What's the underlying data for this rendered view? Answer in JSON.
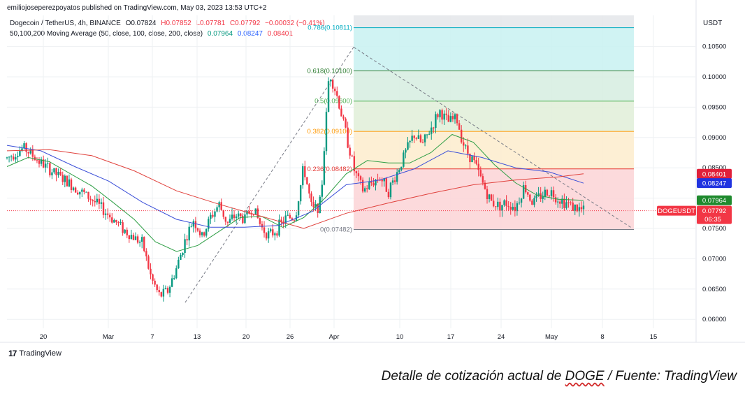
{
  "publisher_line": "emiliojoseperezpoyatos published on TradingView.com, May 03, 2023 13:53 UTC+2",
  "legend": {
    "symbol": "Dogecoin / TetherUS, 4h, BINANCE",
    "o": "O0.07824",
    "h": "H0.07852",
    "l": "L0.07781",
    "c": "C0.07792",
    "change": "−0.00032 (−0.41%)",
    "ma_label": "50,100,200 Moving Average (50, close, 100, close, 200, close)",
    "ma50": "0.07964",
    "ma100": "0.08247",
    "ma200": "0.08401"
  },
  "currency": "USDT",
  "caption": {
    "before": "Detalle de cotización actual de ",
    "ticker": "DOGE",
    "after": " / Fuente: TradingView"
  },
  "brand": "TradingView",
  "price_tags": {
    "ma200": "0.08401",
    "ma100": "0.08247",
    "ma50": "0.07964",
    "symbol": "DOGEUSDT",
    "last": "0.07792",
    "countdown": "06:35"
  },
  "colors": {
    "up": "#089981",
    "down": "#f23645",
    "ma50": "#2e9e45",
    "ma100": "#3b4fd8",
    "ma200": "#e0413c",
    "fib_786": "#c8f1f1",
    "fib_618": "#d6ede0",
    "fib_5": "#e1efd8",
    "fib_382": "#fdeccc",
    "fib_236": "#fbd3d6"
  },
  "chart_data": {
    "type": "candlestick",
    "title": "Dogecoin / TetherUS, 4h, BINANCE",
    "ylabel": "USDT",
    "ylim": [
      0.0575,
      0.1125
    ],
    "y_ticks": [
      "0.06000",
      "0.06500",
      "0.07000",
      "0.07500",
      "0.08000",
      "0.08500",
      "0.09000",
      "0.09500",
      "0.10000",
      "0.10500"
    ],
    "x_ticks": [
      "20",
      "Mar",
      "7",
      "13",
      "20",
      "26",
      "Apr",
      "10",
      "17",
      "24",
      "May",
      "8",
      "15"
    ],
    "fibonacci": {
      "levels": [
        {
          "label": "0.786(0.10811)",
          "ratio": 0.786,
          "price": 0.10811
        },
        {
          "label": "0.618(0.10100)",
          "ratio": 0.618,
          "price": 0.101
        },
        {
          "label": "0.5(0.09600)",
          "ratio": 0.5,
          "price": 0.096
        },
        {
          "label": "0.382(0.09100)",
          "ratio": 0.382,
          "price": 0.091
        },
        {
          "label": "0.236(0.08482)",
          "ratio": 0.236,
          "price": 0.08482
        },
        {
          "label": "0(0.07482)",
          "ratio": 0,
          "price": 0.07482
        }
      ]
    },
    "key_prices": {
      "last": 0.07792,
      "ma50": 0.07964,
      "ma100": 0.08247,
      "ma200": 0.08401,
      "swing_high": 0.1049,
      "swing_low": 0.0628
    },
    "price_path": [
      [
        0,
        0.0866
      ],
      [
        0.04,
        0.0883
      ],
      [
        0.08,
        0.0858
      ],
      [
        0.12,
        0.0837
      ],
      [
        0.16,
        0.0818
      ],
      [
        0.2,
        0.0798
      ],
      [
        0.24,
        0.0772
      ],
      [
        0.28,
        0.0745
      ],
      [
        0.32,
        0.0725
      ],
      [
        0.34,
        0.0668
      ],
      [
        0.36,
        0.0638
      ],
      [
        0.38,
        0.0648
      ],
      [
        0.4,
        0.0685
      ],
      [
        0.42,
        0.073
      ],
      [
        0.44,
        0.0765
      ],
      [
        0.46,
        0.0735
      ],
      [
        0.48,
        0.0768
      ],
      [
        0.5,
        0.079
      ],
      [
        0.52,
        0.0758
      ],
      [
        0.54,
        0.0772
      ],
      [
        0.56,
        0.0765
      ],
      [
        0.58,
        0.0785
      ],
      [
        0.6,
        0.0752
      ],
      [
        0.62,
        0.0738
      ],
      [
        0.64,
        0.0752
      ],
      [
        0.66,
        0.0768
      ],
      [
        0.68,
        0.0768
      ],
      [
        0.7,
        0.0852
      ],
      [
        0.72,
        0.0778
      ],
      [
        0.74,
        0.0792
      ],
      [
        0.76,
        0.101
      ],
      [
        0.78,
        0.0965
      ],
      [
        0.8,
        0.0905
      ],
      [
        0.82,
        0.0843
      ],
      [
        0.84,
        0.0812
      ],
      [
        0.86,
        0.0825
      ],
      [
        0.88,
        0.0835
      ],
      [
        0.9,
        0.0812
      ],
      [
        0.92,
        0.0842
      ],
      [
        0.94,
        0.0875
      ],
      [
        0.96,
        0.0905
      ],
      [
        0.98,
        0.0888
      ],
      [
        1.0,
        0.0915
      ],
      [
        1.02,
        0.0944
      ],
      [
        1.04,
        0.0925
      ],
      [
        1.06,
        0.0932
      ],
      [
        1.08,
        0.0882
      ],
      [
        1.1,
        0.0862
      ],
      [
        1.12,
        0.0828
      ],
      [
        1.14,
        0.0795
      ],
      [
        1.16,
        0.0788
      ],
      [
        1.18,
        0.0792
      ],
      [
        1.2,
        0.0785
      ],
      [
        1.22,
        0.082
      ],
      [
        1.24,
        0.0792
      ],
      [
        1.26,
        0.0805
      ],
      [
        1.28,
        0.0812
      ],
      [
        1.3,
        0.08
      ],
      [
        1.32,
        0.0792
      ],
      [
        1.34,
        0.0784
      ],
      [
        1.36,
        0.0779
      ]
    ]
  }
}
